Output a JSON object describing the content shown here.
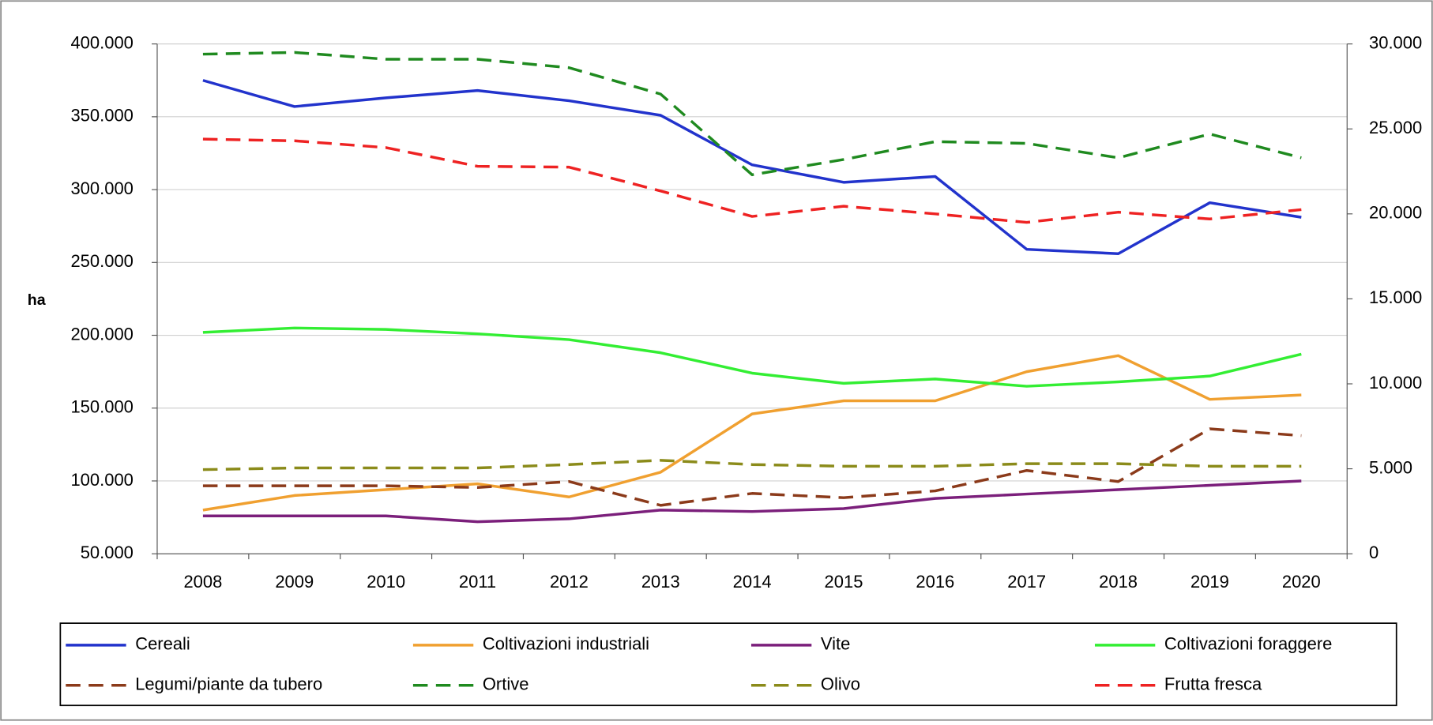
{
  "chart_data": {
    "type": "line",
    "y_label": "ha",
    "categories": [
      "2008",
      "2009",
      "2010",
      "2011",
      "2012",
      "2013",
      "2014",
      "2015",
      "2016",
      "2017",
      "2018",
      "2019",
      "2020"
    ],
    "ylim": [
      50000,
      400000
    ],
    "yticks": [
      {
        "value": 50000,
        "label": "50.000"
      },
      {
        "value": 100000,
        "label": "100.000"
      },
      {
        "value": 150000,
        "label": "150.000"
      },
      {
        "value": 200000,
        "label": "200.000"
      },
      {
        "value": 250000,
        "label": "250.000"
      },
      {
        "value": 300000,
        "label": "300.000"
      },
      {
        "value": 350000,
        "label": "350.000"
      },
      {
        "value": 400000,
        "label": "400.000"
      }
    ],
    "y2lim": [
      0,
      30000
    ],
    "y2ticks": [
      0,
      {
        "value": 5000,
        "label": "5.000"
      },
      {
        "value": 10000,
        "label": "10.000"
      },
      {
        "value": 15000,
        "label": "15.000"
      },
      {
        "value": 20000,
        "label": "20.000"
      },
      {
        "value": 25000,
        "label": "25.000"
      },
      {
        "value": 30000,
        "label": "30.000"
      }
    ],
    "grid": true,
    "legend": "bottom",
    "series": [
      {
        "name": "Cereali",
        "color": "#2233cc",
        "linestyle": "solid",
        "values": [
          375000,
          357000,
          363000,
          368000,
          361000,
          351000,
          317000,
          305000,
          309000,
          259000,
          256000,
          291000,
          281000
        ]
      },
      {
        "name": "Coltivazioni industriali",
        "color": "#f0a030",
        "linestyle": "solid",
        "values": [
          80000,
          90000,
          94000,
          98000,
          89000,
          106000,
          146000,
          155000,
          155000,
          175000,
          186000,
          156000,
          159000
        ]
      },
      {
        "name": "Vite",
        "color": "#7b1f7b",
        "linestyle": "solid",
        "values": [
          76000,
          76000,
          76000,
          72000,
          74000,
          80000,
          79000,
          81000,
          88000,
          91000,
          94000,
          97000,
          100000
        ]
      },
      {
        "name": "Coltivazioni foraggere",
        "color": "#33ee33",
        "linestyle": "solid",
        "values": [
          202000,
          205000,
          204000,
          201000,
          197000,
          188000,
          174000,
          167000,
          170000,
          165000,
          168000,
          172000,
          187000
        ]
      },
      {
        "name": "Legumi/piante da tubero",
        "color": "#8b3a1a",
        "linestyle": "dashed",
        "axis": "y2",
        "values": [
          4000,
          4000,
          4000,
          3900,
          4250,
          2850,
          3550,
          3300,
          3700,
          4900,
          4250,
          7350,
          6950
        ]
      },
      {
        "name": "Ortive",
        "color": "#1f8a1f",
        "linestyle": "dashed",
        "axis": "y2",
        "values": [
          29400,
          29500,
          29100,
          29100,
          28600,
          27050,
          22300,
          23200,
          24250,
          24150,
          23300,
          24700,
          23300
        ]
      },
      {
        "name": "Olivo",
        "color": "#8b8b1a",
        "linestyle": "dashed",
        "axis": "y2",
        "values": [
          4950,
          5050,
          5050,
          5050,
          5250,
          5500,
          5250,
          5150,
          5150,
          5300,
          5300,
          5150,
          5150
        ]
      },
      {
        "name": "Frutta fresca",
        "color": "#ee2222",
        "linestyle": "dashed",
        "axis": "y2",
        "values": [
          24400,
          24300,
          23900,
          22800,
          22750,
          21350,
          19850,
          20450,
          20000,
          19500,
          20100,
          19700,
          20250
        ]
      }
    ]
  }
}
